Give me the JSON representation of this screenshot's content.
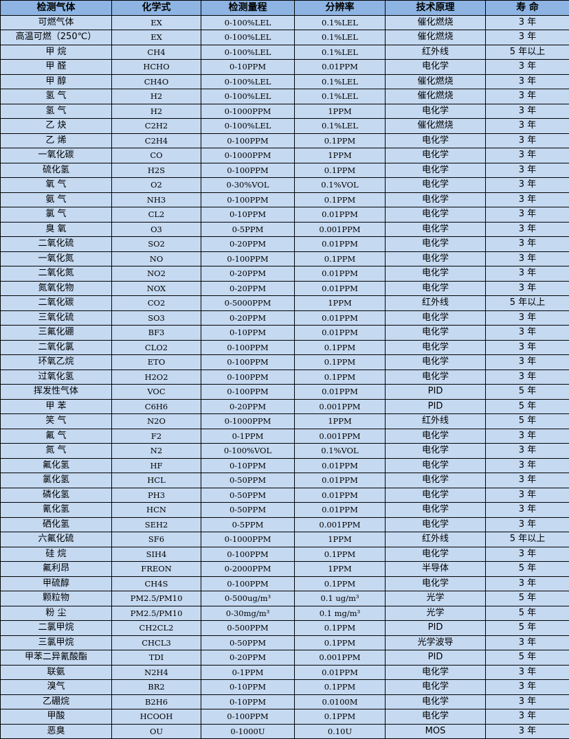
{
  "headers": [
    "检测气体",
    "化学式",
    "检测量程",
    "分辨率",
    "技术原理",
    "寿 命"
  ],
  "colors": {
    "header_bg": "#8db4e2",
    "row_bg": "#c5d9f1",
    "border": "#000000"
  },
  "rows": [
    [
      "可燃气体",
      "EX",
      "0-100%LEL",
      "0.1%LEL",
      "催化燃烧",
      "3 年"
    ],
    [
      "高温可燃（250℃）",
      "EX",
      "0-100%LEL",
      "0.1%LEL",
      "催化燃烧",
      "3 年"
    ],
    [
      "甲 烷",
      "CH4",
      "0-100%LEL",
      "0.1%LEL",
      "红外线",
      "5 年以上"
    ],
    [
      "甲 醛",
      "HCHO",
      "0-10PPM",
      "0.01PPM",
      "电化学",
      "3 年"
    ],
    [
      "甲 醇",
      "CH4O",
      "0-100%LEL",
      "0.1%LEL",
      "催化燃烧",
      "3 年"
    ],
    [
      "氢 气",
      "H2",
      "0-100%LEL",
      "0.1%LEL",
      "催化燃烧",
      "3 年"
    ],
    [
      "氢 气",
      "H2",
      "0-1000PPM",
      "1PPM",
      "电化学",
      "3 年"
    ],
    [
      "乙 炔",
      "C2H2",
      "0-100%LEL",
      "0.1%LEL",
      "催化燃烧",
      "3 年"
    ],
    [
      "乙 烯",
      "C2H4",
      "0-100PPM",
      "0.1PPM",
      "电化学",
      "3 年"
    ],
    [
      "一氧化碳",
      "CO",
      "0-1000PPM",
      "1PPM",
      "电化学",
      "3 年"
    ],
    [
      "硫化氢",
      "H2S",
      "0-100PPM",
      "0.1PPM",
      "电化学",
      "3 年"
    ],
    [
      "氧 气",
      "O2",
      "0-30%VOL",
      "0.1%VOL",
      "电化学",
      "3 年"
    ],
    [
      "氨 气",
      "NH3",
      "0-100PPM",
      "0.1PPM",
      "电化学",
      "3 年"
    ],
    [
      "氯 气",
      "CL2",
      "0-10PPM",
      "0.01PPM",
      "电化学",
      "3 年"
    ],
    [
      "臭 氧",
      "O3",
      "0-5PPM",
      "0.001PPM",
      "电化学",
      "3 年"
    ],
    [
      "二氧化硫",
      "SO2",
      "0-20PPM",
      "0.01PPM",
      "电化学",
      "3 年"
    ],
    [
      "一氧化氮",
      "NO",
      "0-100PPM",
      "0.1PPM",
      "电化学",
      "3 年"
    ],
    [
      "二氧化氮",
      "NO2",
      "0-20PPM",
      "0.01PPM",
      "电化学",
      "3 年"
    ],
    [
      "氮氧化物",
      "NOX",
      "0-20PPM",
      "0.01PPM",
      "电化学",
      "3 年"
    ],
    [
      "二氧化碳",
      "CO2",
      "0-5000PPM",
      "1PPM",
      "红外线",
      "5 年以上"
    ],
    [
      "三氧化硫",
      "SO3",
      "0-20PPM",
      "0.01PPM",
      "电化学",
      "3 年"
    ],
    [
      "三氟化硼",
      "BF3",
      "0-10PPM",
      "0.01PPM",
      "电化学",
      "3 年"
    ],
    [
      "二氧化氯",
      "CLO2",
      "0-100PPM",
      "0.1PPM",
      "电化学",
      "3 年"
    ],
    [
      "环氧乙烷",
      "ETO",
      "0-100PPM",
      "0.1PPM",
      "电化学",
      "3 年"
    ],
    [
      "过氧化氢",
      "H2O2",
      "0-100PPM",
      "0.1PPM",
      "电化学",
      "3 年"
    ],
    [
      "挥发性气体",
      "VOC",
      "0-100PPM",
      "0.01PPM",
      "PID",
      "5 年"
    ],
    [
      "甲 苯",
      "C6H6",
      "0-20PPM",
      "0.001PPM",
      "PID",
      "5 年"
    ],
    [
      "笑 气",
      "N2O",
      "0-1000PPM",
      "1PPM",
      "红外线",
      "5 年"
    ],
    [
      "氟 气",
      "F2",
      "0-1PPM",
      "0.001PPM",
      "电化学",
      "3 年"
    ],
    [
      "氮 气",
      "N2",
      "0-100%VOL",
      "0.1%VOL",
      "电化学",
      "3 年"
    ],
    [
      "氟化氢",
      "HF",
      "0-10PPM",
      "0.01PPM",
      "电化学",
      "3 年"
    ],
    [
      "氯化氢",
      "HCL",
      "0-50PPM",
      "0.01PPM",
      "电化学",
      "3 年"
    ],
    [
      "磷化氢",
      "PH3",
      "0-50PPM",
      "0.01PPM",
      "电化学",
      "3 年"
    ],
    [
      "氰化氢",
      "HCN",
      "0-50PPM",
      "0.01PPM",
      "电化学",
      "3 年"
    ],
    [
      "硒化氢",
      "SEH2",
      "0-5PPM",
      "0.001PPM",
      "电化学",
      "3 年"
    ],
    [
      "六氟化硫",
      "SF6",
      "0-1000PPM",
      "1PPM",
      "红外线",
      "5 年以上"
    ],
    [
      "硅 烷",
      "SIH4",
      "0-100PPM",
      "0.1PPM",
      "电化学",
      "3 年"
    ],
    [
      "氟利昂",
      "FREON",
      "0-2000PPM",
      "1PPM",
      "半导体",
      "5 年"
    ],
    [
      "甲硫醇",
      "CH4S",
      "0-100PPM",
      "0.1PPM",
      "电化学",
      "3 年"
    ],
    [
      "颗粒物",
      "PM2.5/PM10",
      "0-500ug/m³",
      "0.1 ug/m³",
      "光学",
      "5 年"
    ],
    [
      "粉 尘",
      "PM2.5/PM10",
      "0-30mg/m³",
      "0.1 mg/m³",
      "光学",
      "5 年"
    ],
    [
      "二氯甲烷",
      "CH2CL2",
      "0-500PPM",
      "0.1PPM",
      "PID",
      "5 年"
    ],
    [
      "三氯甲烷",
      "CHCL3",
      "0-50PPM",
      "0.1PPM",
      "光学波导",
      "3 年"
    ],
    [
      "甲苯二异氰酸酯",
      "TDI",
      "0-20PPM",
      "0.001PPM",
      "PID",
      "5 年"
    ],
    [
      "联氨",
      "N2H4",
      "0-1PPM",
      "0.01PPM",
      "电化学",
      "3 年"
    ],
    [
      "溴气",
      "BR2",
      "0-10PPM",
      "0.1PPM",
      "电化学",
      "3 年"
    ],
    [
      "乙硼烷",
      "B2H6",
      "0-10PPM",
      "0.0100M",
      "电化学",
      "3 年"
    ],
    [
      "甲酸",
      "HCOOH",
      "0-100PPM",
      "0.1PPM",
      "电化学",
      "3 年"
    ],
    [
      "恶臭",
      "OU",
      "0-1000U",
      "0.10U",
      "MOS",
      "3 年"
    ]
  ]
}
